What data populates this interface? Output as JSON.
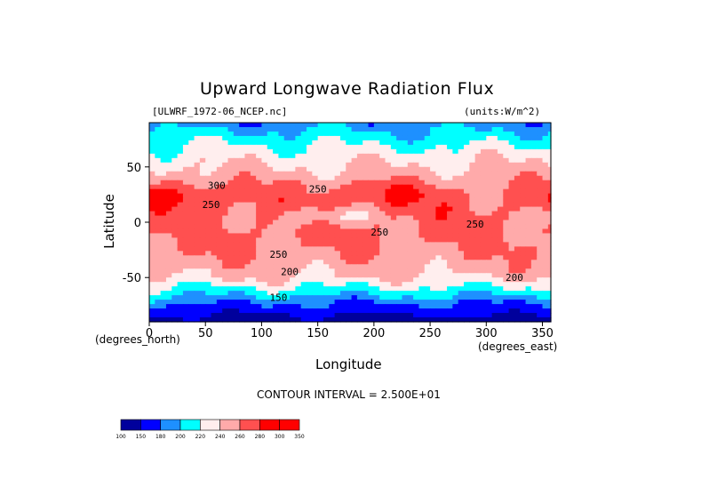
{
  "chart_data": {
    "type": "heatmap",
    "title": "Upward Longwave Radiation Flux",
    "subtitle_left": "[ULWRF_1972-06_NCEP.nc]",
    "subtitle_right": "(units:W/m^2)",
    "xlabel": "Longitude",
    "ylabel": "Latitude",
    "x_unit_label": "(degrees_east)",
    "y_unit_label": "(degrees_north)",
    "xlim": [
      0,
      357.5
    ],
    "ylim": [
      -90,
      90
    ],
    "x_ticks": [
      0,
      50,
      100,
      150,
      200,
      250,
      300,
      350
    ],
    "y_ticks": [
      -50,
      0,
      50
    ],
    "contour_interval_text": "CONTOUR INTERVAL = 2.500E+01",
    "contour_labels": [
      {
        "text": "300",
        "lon": 60,
        "lat": 30
      },
      {
        "text": "250",
        "lon": 150,
        "lat": 27
      },
      {
        "text": "250",
        "lon": 55,
        "lat": 13
      },
      {
        "text": "250",
        "lon": 205,
        "lat": -12
      },
      {
        "text": "250",
        "lon": 290,
        "lat": -5
      },
      {
        "text": "250",
        "lon": 115,
        "lat": -32
      },
      {
        "text": "200",
        "lon": 125,
        "lat": -48
      },
      {
        "text": "200",
        "lon": 325,
        "lat": -53
      },
      {
        "text": "150",
        "lon": 115,
        "lat": -71
      }
    ],
    "colorbar": {
      "levels": [
        100,
        150,
        180,
        200,
        220,
        240,
        260,
        280,
        300,
        350
      ],
      "level_labels": [
        "100",
        "150",
        "180",
        "200",
        "220",
        "240",
        "260",
        "280",
        "300",
        "350"
      ],
      "colors": [
        "#00009c",
        "#0000ff",
        "#1e90ff",
        "#00ffff",
        "#ffeeee",
        "#ffaaaa",
        "#ff5050",
        "#ff0000",
        "#ff0000"
      ]
    }
  }
}
